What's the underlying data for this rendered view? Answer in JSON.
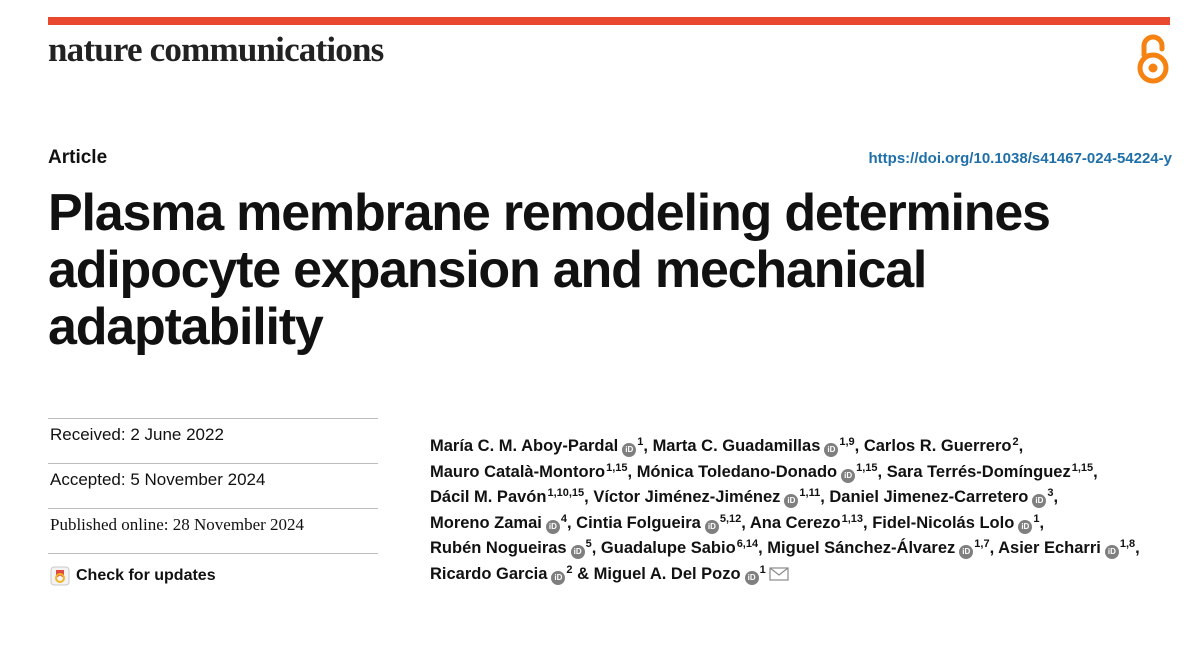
{
  "header": {
    "journal_name": "nature communications",
    "accent_color": "#e8492e",
    "open_access_icon": "open-access-icon"
  },
  "article": {
    "type": "Article",
    "doi": "https://doi.org/10.1038/s41467-024-54224-y",
    "title": "Plasma membrane remodeling determines adipocyte expansion and mechanical adaptability"
  },
  "dates": {
    "received": "Received: 2 June 2022",
    "accepted": "Accepted: 5 November 2024",
    "published": "Published online: 28 November 2024",
    "check_updates": "Check for updates"
  },
  "authors": [
    {
      "name": "María C. M. Aboy-Pardal",
      "orcid": true,
      "aff": "1",
      "sep": ", "
    },
    {
      "name": "Marta C. Guadamillas",
      "orcid": true,
      "aff": "1,9",
      "sep": ", "
    },
    {
      "name": "Carlos R. Guerrero",
      "orcid": false,
      "aff": "2",
      "sep": ", "
    },
    {
      "name": "Mauro Català-Montoro",
      "orcid": false,
      "aff": "1,15",
      "sep": ", "
    },
    {
      "name": "Mónica Toledano-Donado",
      "orcid": true,
      "aff": "1,15",
      "sep": ", "
    },
    {
      "name": "Sara Terrés-Domínguez",
      "orcid": false,
      "aff": "1,15",
      "sep": ", "
    },
    {
      "name": "Dácil M. Pavón",
      "orcid": false,
      "aff": "1,10,15",
      "sep": ", "
    },
    {
      "name": "Víctor Jiménez-Jiménez",
      "orcid": true,
      "aff": "1,11",
      "sep": ", "
    },
    {
      "name": "Daniel Jimenez-Carretero",
      "orcid": true,
      "aff": "3",
      "sep": ", "
    },
    {
      "name": "Moreno Zamai",
      "orcid": true,
      "aff": "4",
      "sep": ", "
    },
    {
      "name": "Cintia Folgueira",
      "orcid": true,
      "aff": "5,12",
      "sep": ", "
    },
    {
      "name": "Ana Cerezo",
      "orcid": false,
      "aff": "1,13",
      "sep": ", "
    },
    {
      "name": "Fidel-Nicolás Lolo",
      "orcid": true,
      "aff": "1",
      "sep": ", "
    },
    {
      "name": "Rubén Nogueiras",
      "orcid": true,
      "aff": "5",
      "sep": ", "
    },
    {
      "name": "Guadalupe Sabio",
      "orcid": false,
      "aff": "6,14",
      "sep": ", "
    },
    {
      "name": "Miguel Sánchez-Álvarez",
      "orcid": true,
      "aff": "1,7",
      "sep": ", "
    },
    {
      "name": "Asier Echarri",
      "orcid": true,
      "aff": "1,8",
      "sep": ", "
    },
    {
      "name": "Ricardo Garcia",
      "orcid": true,
      "aff": "2",
      "sep": " & "
    },
    {
      "name": "Miguel A. Del Pozo",
      "orcid": true,
      "aff": "1",
      "sep": "",
      "mail": true
    }
  ]
}
